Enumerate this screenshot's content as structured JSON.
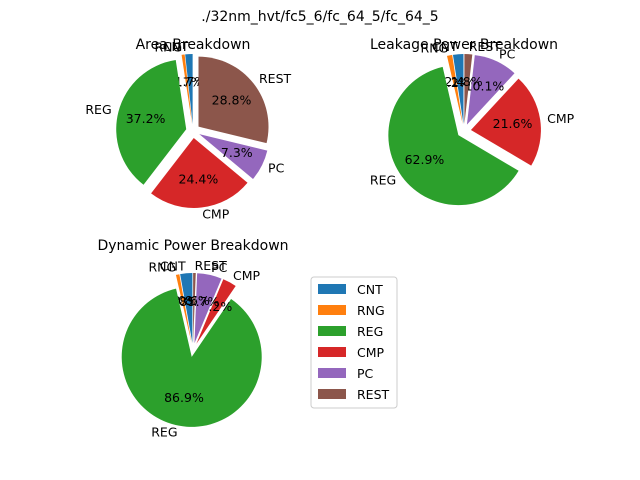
{
  "figure": {
    "suptitle": "./32nm_hvt/fc5_6/fc_64_5/fc_64_5"
  },
  "colors": {
    "CNT": "#1f77b4",
    "RNG": "#ff7f0e",
    "REG": "#2ca02c",
    "CMP": "#d62728",
    "PC": "#9467bd",
    "REST": "#8c564b"
  },
  "legend": {
    "placement": "lower-center",
    "entries": [
      "CNT",
      "RNG",
      "REG",
      "CMP",
      "PC",
      "REST"
    ]
  },
  "chart_data": [
    {
      "type": "pie",
      "title": "Area Breakdown",
      "categories": [
        "CNT",
        "RNG",
        "REG",
        "CMP",
        "PC",
        "REST"
      ],
      "values": [
        1.7,
        0.7,
        37.2,
        24.4,
        7.3,
        28.8
      ],
      "value_labels": [
        "1.7%",
        "0.7%",
        "37.2%",
        "24.4%",
        "7.3%",
        "28.8%"
      ],
      "start_angle_deg": 90,
      "counterclock": true,
      "explode": 0.1
    },
    {
      "type": "pie",
      "title": "Leakage Power Breakdown",
      "categories": [
        "CNT",
        "RNG",
        "REG",
        "CMP",
        "PC",
        "REST"
      ],
      "values": [
        2.4,
        1.2,
        62.9,
        21.6,
        10.1,
        1.8
      ],
      "value_labels": [
        "2.4%",
        "1.2%",
        "62.9%",
        "21.6%",
        "10.1%",
        "1.8%"
      ],
      "start_angle_deg": 90,
      "counterclock": true,
      "explode": 0.1
    },
    {
      "type": "pie",
      "title": "Dynamic Power Breakdown",
      "categories": [
        "CNT",
        "RNG",
        "REG",
        "CMP",
        "PC",
        "REST"
      ],
      "values": [
        2.8,
        0.8,
        86.9,
        3.2,
        5.7,
        0.6
      ],
      "value_labels": [
        "2.8%",
        "0.8%",
        "86.9%",
        "3.2%",
        "5.7%",
        "0.6%"
      ],
      "start_angle_deg": 90,
      "counterclock": true,
      "explode": 0.1
    }
  ]
}
